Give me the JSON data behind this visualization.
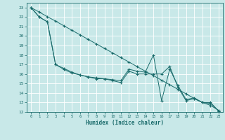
{
  "xlabel": "Humidex (Indice chaleur)",
  "bg_color": "#c8e8e8",
  "grid_color": "#ffffff",
  "line_color": "#1a6b6b",
  "xlim": [
    -0.5,
    23.5
  ],
  "ylim": [
    12,
    23.5
  ],
  "xticks": [
    0,
    1,
    2,
    3,
    4,
    5,
    6,
    7,
    8,
    9,
    10,
    11,
    12,
    13,
    14,
    15,
    16,
    17,
    18,
    19,
    20,
    21,
    22,
    23
  ],
  "yticks": [
    12,
    13,
    14,
    15,
    16,
    17,
    18,
    19,
    20,
    21,
    22,
    23
  ],
  "line1_x": [
    0,
    1,
    2,
    3,
    4,
    5,
    6,
    7,
    8,
    9,
    10,
    11,
    12,
    13,
    14,
    15,
    16,
    17,
    18,
    19,
    20,
    21,
    22,
    23
  ],
  "line1_y": [
    23,
    22.52,
    22.04,
    21.57,
    21.09,
    20.61,
    20.13,
    19.65,
    19.17,
    18.7,
    18.22,
    17.74,
    17.26,
    16.78,
    16.3,
    15.83,
    15.35,
    14.87,
    14.39,
    13.91,
    13.43,
    13.0,
    12.7,
    12.17
  ],
  "line2_x": [
    0,
    1,
    2,
    3,
    4,
    5,
    6,
    7,
    8,
    9,
    10,
    11,
    12,
    13,
    14,
    15,
    16,
    17,
    18,
    19,
    20,
    21,
    22,
    23
  ],
  "line2_y": [
    23,
    22,
    21.5,
    17.0,
    16.5,
    16.1,
    15.9,
    15.7,
    15.6,
    15.5,
    15.4,
    15.3,
    16.5,
    16.3,
    16.2,
    18.0,
    13.2,
    16.5,
    14.8,
    13.3,
    13.5,
    13.0,
    13.0,
    12.1
  ],
  "line3_x": [
    0,
    1,
    2,
    3,
    4,
    5,
    6,
    7,
    8,
    9,
    10,
    11,
    12,
    13,
    14,
    15,
    16,
    17,
    18,
    19,
    20,
    21,
    22,
    23
  ],
  "line3_y": [
    23,
    22,
    21.5,
    17.0,
    16.6,
    16.2,
    15.9,
    15.7,
    15.5,
    15.5,
    15.3,
    15.1,
    16.3,
    16.0,
    16.0,
    16.0,
    16.0,
    16.8,
    14.6,
    13.2,
    13.4,
    13.0,
    12.9,
    12.1
  ]
}
